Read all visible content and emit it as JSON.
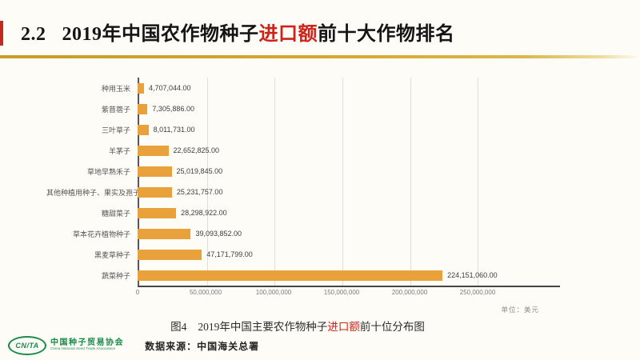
{
  "title": {
    "number": "2.2",
    "text_before": "2019年中国农作物种子",
    "highlight": "进口额",
    "text_after": "前十大作物排名"
  },
  "colors": {
    "accent_red": "#c5281c",
    "highlight_red": "#cf2319",
    "gold_line": "#d6a92e",
    "bar_orange": "#e9a13b",
    "logo_green": "#1b8a4b"
  },
  "chart_data": {
    "type": "bar",
    "orientation": "horizontal",
    "title": "",
    "unit_label": "单位：美元",
    "categories": [
      "种用玉米",
      "紫苜蓿子",
      "三叶草子",
      "羊茅子",
      "草地早熟禾子",
      "其他种植用种子、果实及孢子",
      "糖甜菜子",
      "草本花卉植物种子",
      "黑麦草种子",
      "蔬菜种子"
    ],
    "values": [
      4707044,
      7305886,
      8011731,
      22652825,
      25019845,
      25231757,
      28298922,
      39093852,
      47171799,
      224151060
    ],
    "value_labels": [
      "4,707,044.00",
      "7,305,886.00",
      "8,011,731.00",
      "22,652,825.00",
      "25,019,845.00",
      "25,231,757.00",
      "28,298,922.00",
      "39,093,852.00",
      "47,171,799.00",
      "224,151,060.00"
    ],
    "x_ticks": [
      "0",
      "50,000,000",
      "100,000,000",
      "150,000,000",
      "200,000,000",
      "250,000,000"
    ],
    "xlim": [
      0,
      250000000
    ],
    "grid": true,
    "legend": false,
    "bar_color": "#e9a13b"
  },
  "caption": {
    "fig_label": "图4",
    "text_before": "2019年中国主要农作物种子",
    "highlight": "进口额",
    "text_after": "前十位分布图"
  },
  "footer": {
    "logo_abbr": "CN/TA",
    "org_name_cn": "中国种子贸易协会",
    "org_name_en": "China National Seed Trade Association",
    "data_source": "数据来源：中国海关总署"
  }
}
